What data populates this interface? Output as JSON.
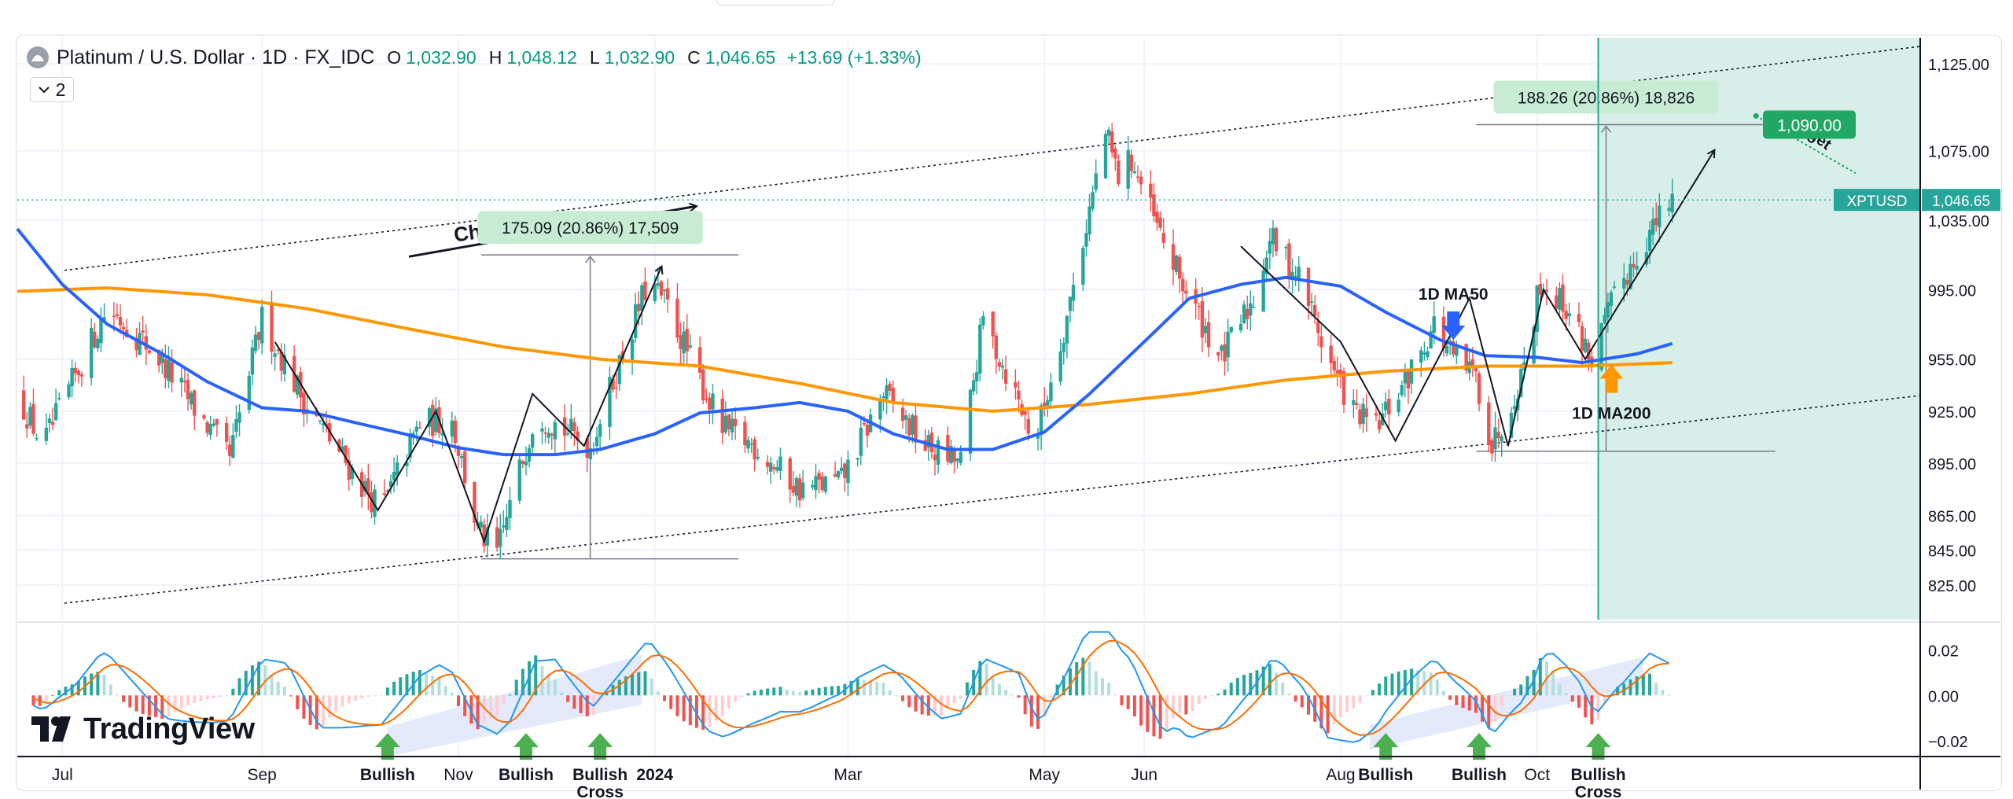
{
  "header": {
    "symbol": "Platinum / U.S. Dollar · 1D · FX_IDC",
    "open_label": "O",
    "open": "1,032.90",
    "high_label": "H",
    "high": "1,048.12",
    "low_label": "L",
    "low": "1,032.90",
    "close_label": "C",
    "close": "1,046.65",
    "change": "+13.69 (+1.33%)",
    "indicators_collapsed": "2"
  },
  "colors": {
    "up": "#26a69a",
    "down": "#ef5350",
    "ma50": "#2962ff",
    "ma200": "#ff9800",
    "macd": "#2196f3",
    "signal": "#ff6d00",
    "projection_zone": "#d7efe8",
    "label_green": "#21a865",
    "price_tag": "#26a69a"
  },
  "brand": "TradingView",
  "chart_data": [
    {
      "type": "candlestick",
      "symbol": "XPTUSD",
      "timeframe": "1D",
      "y_axis": {
        "ticks": [
          825.0,
          845.0,
          865.0,
          895.0,
          925.0,
          955.0,
          995.0,
          1035.0,
          1075.0,
          1125.0
        ],
        "tick_labels": [
          "825.00",
          "845.00",
          "865.00",
          "895.00",
          "925.00",
          "955.00",
          "995.00",
          "1,035.00",
          "1,075.00",
          "1,125.00"
        ],
        "range": [
          805,
          1140
        ]
      },
      "x_axis": {
        "tick_labels": [
          "Jul",
          "Sep",
          "Nov",
          "2024",
          "Mar",
          "May",
          "Jun",
          "Aug",
          "Oct"
        ],
        "tick_dates": [
          "2023-07-01",
          "2023-09-01",
          "2023-11-01",
          "2024-01-01",
          "2024-03-01",
          "2024-05-01",
          "2024-06-01",
          "2024-08-01",
          "2024-10-01"
        ],
        "range": [
          "2023-06-17",
          "2025-01-28"
        ]
      },
      "price_path": [
        [
          "2023-06-17",
          935
        ],
        [
          "2023-06-25",
          905
        ],
        [
          "2023-07-15",
          985
        ],
        [
          "2023-07-30",
          958
        ],
        [
          "2023-08-22",
          898
        ],
        [
          "2023-09-01",
          978
        ],
        [
          "2023-09-15",
          928
        ],
        [
          "2023-10-01",
          885
        ],
        [
          "2023-10-08",
          868
        ],
        [
          "2023-10-20",
          918
        ],
        [
          "2023-10-30",
          920
        ],
        [
          "2023-11-07",
          856
        ],
        [
          "2023-11-13",
          843
        ],
        [
          "2023-11-25",
          925
        ],
        [
          "2023-12-12",
          905
        ],
        [
          "2023-12-30",
          1000
        ],
        [
          "2024-01-05",
          985
        ],
        [
          "2024-01-12",
          955
        ],
        [
          "2024-01-22",
          915
        ],
        [
          "2024-02-01",
          905
        ],
        [
          "2024-02-15",
          880
        ],
        [
          "2024-02-28",
          885
        ],
        [
          "2024-03-12",
          935
        ],
        [
          "2024-03-25",
          905
        ],
        [
          "2024-04-05",
          895
        ],
        [
          "2024-04-12",
          978
        ],
        [
          "2024-04-22",
          935
        ],
        [
          "2024-04-28",
          907
        ],
        [
          "2024-05-08",
          980
        ],
        [
          "2024-05-20",
          1085
        ],
        [
          "2024-05-24",
          1060
        ],
        [
          "2024-05-28",
          1070
        ],
        [
          "2024-06-05",
          1030
        ],
        [
          "2024-06-15",
          990
        ],
        [
          "2024-06-25",
          955
        ],
        [
          "2024-07-05",
          990
        ],
        [
          "2024-07-10",
          1025
        ],
        [
          "2024-07-20",
          1000
        ],
        [
          "2024-07-28",
          955
        ],
        [
          "2024-08-05",
          925
        ],
        [
          "2024-08-12",
          915
        ],
        [
          "2024-08-22",
          945
        ],
        [
          "2024-08-30",
          975
        ],
        [
          "2024-09-05",
          955
        ],
        [
          "2024-09-12",
          945
        ],
        [
          "2024-09-17",
          905
        ],
        [
          "2024-09-26",
          945
        ],
        [
          "2024-10-02",
          1000
        ],
        [
          "2024-10-10",
          985
        ],
        [
          "2024-10-18",
          955
        ],
        [
          "2024-10-26",
          995
        ],
        [
          "2024-11-04",
          1025
        ],
        [
          "2024-11-12",
          1046.65
        ]
      ],
      "ma50": [
        [
          "2023-06-17",
          1030
        ],
        [
          "2023-07-01",
          998
        ],
        [
          "2023-07-15",
          975
        ],
        [
          "2023-08-01",
          958
        ],
        [
          "2023-08-15",
          942
        ],
        [
          "2023-09-01",
          927
        ],
        [
          "2023-09-15",
          925
        ],
        [
          "2023-10-01",
          918
        ],
        [
          "2023-10-15",
          912
        ],
        [
          "2023-11-01",
          904
        ],
        [
          "2023-11-15",
          900
        ],
        [
          "2023-12-01",
          900
        ],
        [
          "2023-12-15",
          903
        ],
        [
          "2024-01-01",
          912
        ],
        [
          "2024-01-15",
          924
        ],
        [
          "2024-02-01",
          927
        ],
        [
          "2024-02-15",
          930
        ],
        [
          "2024-03-01",
          925
        ],
        [
          "2024-03-15",
          912
        ],
        [
          "2024-04-01",
          903
        ],
        [
          "2024-04-15",
          903
        ],
        [
          "2024-05-01",
          913
        ],
        [
          "2024-05-15",
          935
        ],
        [
          "2024-06-01",
          965
        ],
        [
          "2024-06-15",
          990
        ],
        [
          "2024-07-01",
          998
        ],
        [
          "2024-07-15",
          1002
        ],
        [
          "2024-08-01",
          997
        ],
        [
          "2024-08-15",
          982
        ],
        [
          "2024-09-01",
          966
        ],
        [
          "2024-09-15",
          957
        ],
        [
          "2024-10-01",
          956
        ],
        [
          "2024-10-15",
          953
        ],
        [
          "2024-11-01",
          958
        ],
        [
          "2024-11-12",
          964
        ]
      ],
      "ma200": [
        [
          "2023-06-17",
          994
        ],
        [
          "2023-07-15",
          996
        ],
        [
          "2023-08-15",
          992
        ],
        [
          "2023-09-15",
          984
        ],
        [
          "2023-10-15",
          973
        ],
        [
          "2023-11-15",
          962
        ],
        [
          "2023-12-15",
          955
        ],
        [
          "2024-01-15",
          951
        ],
        [
          "2024-02-15",
          941
        ],
        [
          "2024-03-15",
          930
        ],
        [
          "2024-04-15",
          925
        ],
        [
          "2024-05-15",
          929
        ],
        [
          "2024-06-15",
          935
        ],
        [
          "2024-07-15",
          943
        ],
        [
          "2024-08-15",
          948
        ],
        [
          "2024-09-15",
          951
        ],
        [
          "2024-10-15",
          951
        ],
        [
          "2024-11-12",
          953
        ]
      ],
      "current_price_label": "1,046.65",
      "current_price_symbol": "XPTUSD",
      "channel": {
        "upper": [
          [
            "2023-06-17",
            998
          ],
          [
            "2025-01-28",
            1135
          ]
        ],
        "lower": [
          [
            "2023-06-17",
            807
          ],
          [
            "2025-01-28",
            934
          ]
        ],
        "label": "Channel Up"
      },
      "measurements": [
        {
          "label": "175.09 (20.86%) 17,509",
          "from_date": "2023-11-13",
          "to_date": "2024-01-05",
          "low": 840,
          "high": 1015
        },
        {
          "label": "188.26 (20.86%) 18,826",
          "from_date": "2024-09-17",
          "to_date": "2024-11-22",
          "low": 902,
          "high": 1090
        }
      ],
      "target": {
        "label": "Target",
        "price_label": "1,090.00",
        "price": 1090
      },
      "annotations": [
        {
          "text": "1D MA50",
          "date": "2024-09-05",
          "price": 987
        },
        {
          "text": "1D MA200",
          "date": "2024-10-18",
          "price": 932
        }
      ]
    },
    {
      "type": "macd",
      "y_axis": {
        "tick_labels": [
          "0.02",
          "0.00",
          "−0.02"
        ],
        "range": [
          -0.027,
          0.031
        ]
      },
      "labels": [
        {
          "text": "Bullish",
          "date": "2023-10-10"
        },
        {
          "text": "Bullish",
          "date": "2023-11-22"
        },
        {
          "text": "Bullish\nCross",
          "date": "2023-12-15"
        },
        {
          "text": "Bullish",
          "date": "2024-08-15"
        },
        {
          "text": "Bullish",
          "date": "2024-09-13"
        },
        {
          "text": "Bullish\nCross",
          "date": "2024-10-20"
        }
      ]
    }
  ]
}
